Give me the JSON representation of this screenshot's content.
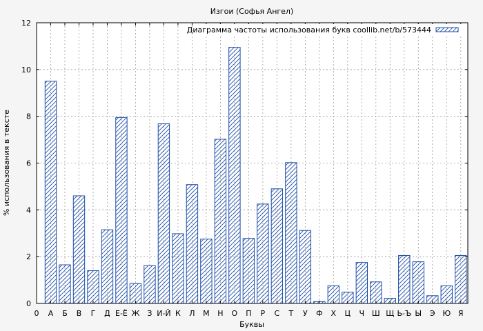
{
  "chart_data": {
    "type": "bar",
    "title": "Изгои (Софья Ангел)",
    "xlabel": "Буквы",
    "ylabel": "% использования в тексте",
    "legend": "Диаграмма частоты использования букв coollib.net/b/573444",
    "legend_position": "top-right",
    "grid": true,
    "ylim": [
      0,
      12
    ],
    "yticks": [
      0,
      2,
      4,
      6,
      8,
      10,
      12
    ],
    "x_origin_label": "0",
    "categories": [
      "А",
      "Б",
      "В",
      "Г",
      "Д",
      "Е-Ё",
      "Ж",
      "З",
      "И-Й",
      "К",
      "Л",
      "М",
      "Н",
      "О",
      "П",
      "Р",
      "С",
      "Т",
      "У",
      "Ф",
      "Х",
      "Ц",
      "Ч",
      "Ш",
      "Щ",
      "Ь-Ъ",
      "Ы",
      "Э",
      "Ю",
      "Я"
    ],
    "values": [
      9.5,
      1.65,
      4.6,
      1.4,
      3.15,
      7.95,
      0.85,
      1.62,
      7.68,
      2.98,
      5.08,
      2.75,
      7.02,
      10.95,
      2.78,
      4.25,
      4.9,
      6.02,
      3.12,
      0.08,
      0.75,
      0.48,
      1.75,
      0.92,
      0.22,
      2.05,
      1.78,
      0.33,
      0.75,
      2.05
    ],
    "bar_color": "#1f4fa8",
    "background_color": "#f5f5f5",
    "plot_background_color": "#ffffff"
  }
}
